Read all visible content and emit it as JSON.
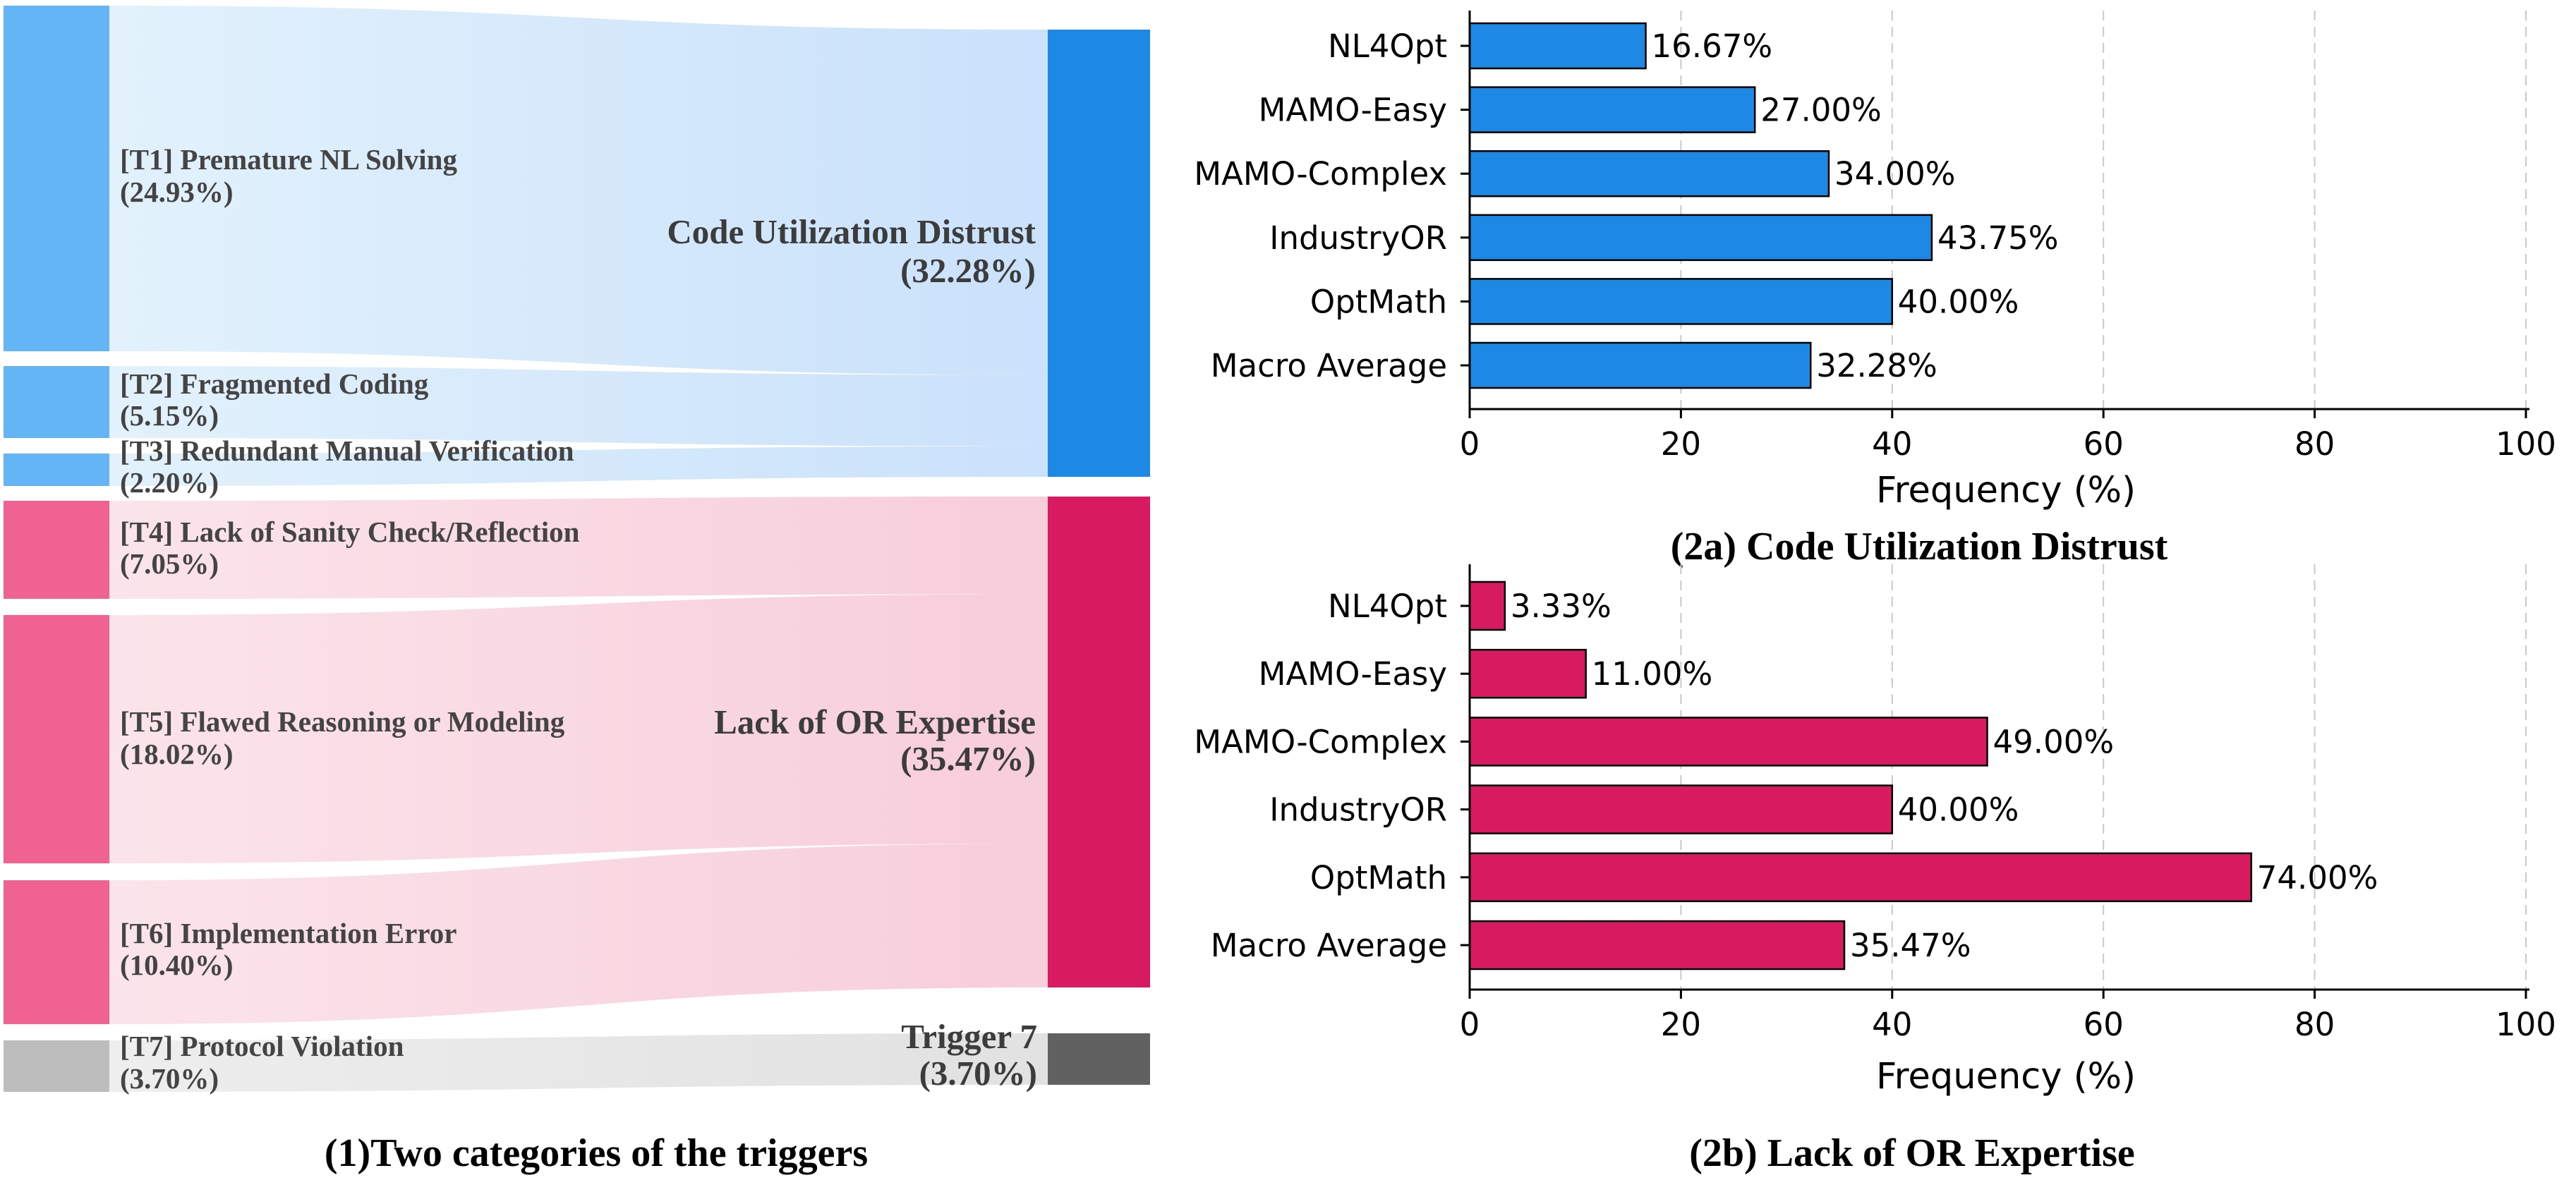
{
  "colors": {
    "blue": "#1e88e5",
    "blue_light": "#64b5f6",
    "pink": "#d81b60",
    "pink_light": "#f06292",
    "gray_dark": "#616161",
    "gray_light": "#bdbdbd"
  },
  "sankey": {
    "caption": "(1)Two categories of the triggers",
    "triggers": [
      {
        "id": "t1",
        "name": "[T1] Premature NL Solving",
        "pct_label": "(24.93%)",
        "value": 24.93,
        "target": "cud"
      },
      {
        "id": "t2",
        "name": "[T2] Fragmented Coding",
        "pct_label": "(5.15%)",
        "value": 5.15,
        "target": "cud"
      },
      {
        "id": "t3",
        "name": "[T3] Redundant Manual Verification",
        "pct_label": "(2.20%)",
        "value": 2.2,
        "target": "cud"
      },
      {
        "id": "t4",
        "name": "[T4] Lack of Sanity Check/Reflection",
        "pct_label": "(7.05%)",
        "value": 7.05,
        "target": "lor"
      },
      {
        "id": "t5",
        "name": "[T5] Flawed Reasoning or Modeling",
        "pct_label": "(18.02%)",
        "value": 18.02,
        "target": "lor"
      },
      {
        "id": "t6",
        "name": "[T6] Implementation Error",
        "pct_label": "(10.40%)",
        "value": 10.4,
        "target": "lor"
      },
      {
        "id": "t7",
        "name": "[T7] Protocol Violation",
        "pct_label": "(3.70%)",
        "value": 3.7,
        "target": "trig7"
      }
    ],
    "categories": [
      {
        "id": "cud",
        "name": "Code Utilization Distrust",
        "pct_label": "(32.28%)",
        "value": 32.28
      },
      {
        "id": "lor",
        "name": "Lack of OR Expertise",
        "pct_label": "(35.47%)",
        "value": 35.47
      },
      {
        "id": "trig7",
        "name": "Trigger 7",
        "pct_label": "(3.70%)",
        "value": 3.7
      }
    ]
  },
  "chart_data": [
    {
      "type": "bar",
      "orientation": "horizontal",
      "title": "(2a) Code Utilization Distrust",
      "categories": [
        "NL4Opt",
        "MAMO-Easy",
        "MAMO-Complex",
        "IndustryOR",
        "OptMath",
        "Macro Average"
      ],
      "values": [
        16.67,
        27.0,
        34.0,
        43.75,
        40.0,
        32.28
      ],
      "value_labels": [
        "16.67%",
        "27.00%",
        "34.00%",
        "43.75%",
        "40.00%",
        "32.28%"
      ],
      "xlabel": "Frequency (%)",
      "ylabel": "",
      "xlim": [
        0,
        100
      ],
      "xticks": [
        "0",
        "20",
        "40",
        "60",
        "80",
        "100"
      ],
      "grid": "vertical dashed",
      "color": "#1e88e5"
    },
    {
      "type": "bar",
      "orientation": "horizontal",
      "title": "(2b) Lack of OR Expertise",
      "categories": [
        "NL4Opt",
        "MAMO-Easy",
        "MAMO-Complex",
        "IndustryOR",
        "OptMath",
        "Macro Average"
      ],
      "values": [
        3.33,
        11.0,
        49.0,
        40.0,
        74.0,
        35.47
      ],
      "value_labels": [
        "3.33%",
        "11.00%",
        "49.00%",
        "40.00%",
        "74.00%",
        "35.47%"
      ],
      "xlabel": "Frequency (%)",
      "ylabel": "",
      "xlim": [
        0,
        100
      ],
      "xticks": [
        "0",
        "20",
        "40",
        "60",
        "80",
        "100"
      ],
      "grid": "vertical dashed",
      "color": "#d81b60"
    }
  ]
}
